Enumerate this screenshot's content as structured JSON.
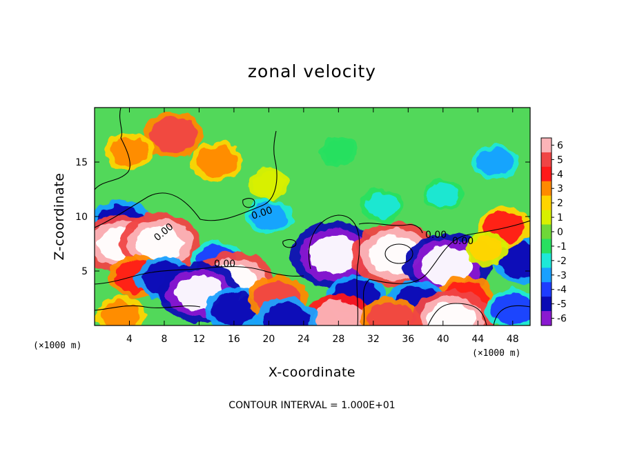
{
  "chart_data": {
    "type": "heatmap",
    "title": "zonal velocity",
    "xlabel": "X-coordinate",
    "ylabel": "Z-coordinate",
    "x_unit_note": "(×1000 m)",
    "y_unit_note": "(×1000 m)",
    "xlim": [
      0,
      50
    ],
    "ylim": [
      0,
      20
    ],
    "x_ticks": [
      4,
      8,
      12,
      16,
      20,
      24,
      28,
      32,
      36,
      40,
      44,
      48
    ],
    "y_ticks": [
      5,
      10,
      15
    ],
    "colorbar": {
      "min": -6,
      "max": 6,
      "ticks": [
        6,
        5,
        4,
        3,
        2,
        1,
        0,
        -1,
        -2,
        -3,
        -4,
        -5,
        -6
      ],
      "colors": [
        "#fbb4b8",
        "#f04545",
        "#ff1a1a",
        "#ff8a00",
        "#ffd400",
        "#d8f000",
        "#6ed838",
        "#28e060",
        "#1ee8d8",
        "#19a0ff",
        "#1e3cff",
        "#0a0ab4",
        "#8a1ad0"
      ]
    },
    "contour_labels": [
      "0.00",
      "0.00",
      "0.00",
      "0.00",
      "0.00"
    ],
    "footer": "CONTOUR INTERVAL = 1.000E+01",
    "field_features": [
      {
        "x": 9,
        "z": 17.5,
        "value": 5
      },
      {
        "x": 4,
        "z": 16,
        "value": 3
      },
      {
        "x": 14,
        "z": 15,
        "value": 3.5
      },
      {
        "x": 20,
        "z": 13,
        "value": 1.5
      },
      {
        "x": 46,
        "z": 15,
        "value": -2.5
      },
      {
        "x": 40,
        "z": 12,
        "value": -1.5
      },
      {
        "x": 28,
        "z": 16,
        "value": -1
      },
      {
        "x": 3,
        "z": 9.5,
        "value": -4.5
      },
      {
        "x": 3,
        "z": 7.5,
        "value": 6.5
      },
      {
        "x": 7.5,
        "z": 7.5,
        "value": 7
      },
      {
        "x": 5,
        "z": 4.5,
        "value": 4.5
      },
      {
        "x": 8,
        "z": 4.3,
        "value": -4.5
      },
      {
        "x": 14,
        "z": 6,
        "value": -3.5
      },
      {
        "x": 16,
        "z": 4,
        "value": 7
      },
      {
        "x": 12,
        "z": 3,
        "value": -7
      },
      {
        "x": 16,
        "z": 1.5,
        "value": -4.5
      },
      {
        "x": 21,
        "z": 2.5,
        "value": 5
      },
      {
        "x": 27.5,
        "z": 6.5,
        "value": -8
      },
      {
        "x": 30,
        "z": 2.5,
        "value": -5
      },
      {
        "x": 34.5,
        "z": 6.5,
        "value": 8
      },
      {
        "x": 40.5,
        "z": 5.5,
        "value": -8
      },
      {
        "x": 42.5,
        "z": 2.5,
        "value": 4.5
      },
      {
        "x": 37,
        "z": 2,
        "value": -5
      },
      {
        "x": 28,
        "z": 0.6,
        "value": 6
      },
      {
        "x": 34,
        "z": 0.5,
        "value": 5
      },
      {
        "x": 41,
        "z": 0.5,
        "value": 7
      },
      {
        "x": 48,
        "z": 1.5,
        "value": -4
      },
      {
        "x": 49,
        "z": 6,
        "value": -5
      },
      {
        "x": 47,
        "z": 9,
        "value": 4
      },
      {
        "x": 45,
        "z": 7,
        "value": 2
      },
      {
        "x": 20,
        "z": 10,
        "value": -2.5
      },
      {
        "x": 33,
        "z": 11,
        "value": -2
      },
      {
        "x": 3,
        "z": 1,
        "value": 3
      },
      {
        "x": 22,
        "z": 0.5,
        "value": -5
      }
    ]
  }
}
